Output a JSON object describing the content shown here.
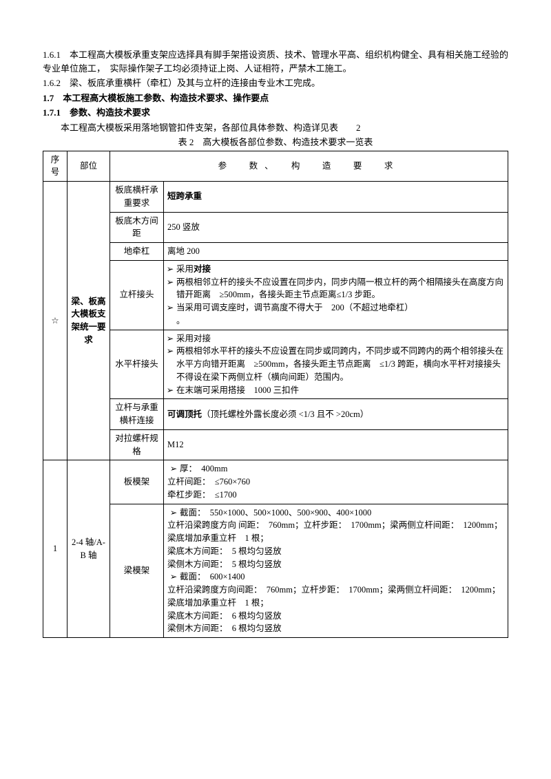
{
  "intro": {
    "p161": "1.6.1　本工程高大模板承重支架应选择具有脚手架搭设资质、技术、管理水平高、组织机构健全、具有相关施工经验的专业单位施工，　实际操作架子工均必须持证上岗、人证相符，严禁木工施工。",
    "p162": "1.6.2　梁、板底承重横杆（牵杠）及其与立杆的连接由专业木工完成。",
    "p17": "1.7　本工程高大模板施工参数、构造技术要求、操作要点",
    "p171": "1.7.1　参数、构造技术要求",
    "p171body": "本工程高大模板采用落地钢管扣件支架，各部位具体参数、构造详见表　　2",
    "caption": "表 2　高大模板各部位参数、构造技术要求一览表"
  },
  "headers": {
    "seq": "序号",
    "pos": "部位",
    "req": "参　数、　构　造　要　求"
  },
  "g0": {
    "star": "☆",
    "pos": "梁、板高大模板支架统一要求",
    "r1_lab": "板底横杆承重要求",
    "r1_val": "短跨承重",
    "r2_lab": "板底木方间距",
    "r2_val": "250 竖放",
    "r3_lab": "地牵杠",
    "r3_val": "离地 200",
    "r4_lab": "立杆接头",
    "r4_b1": "采用",
    "r4_b1b": "对接",
    "r4_b2": "两根相邻立杆的接头不应设置在同步内，同步内隔一根立杆的两个相隔接头在高度方向错开距离　≥500mm，各接头距主节点距离≤1/3 步距。",
    "r4_b3a": "当采用可调支座时，调节高度不得大于　200（不超过地牵杠）",
    "r4_b3b": "。",
    "r5_lab": "水平杆接头",
    "r5_b1": "采用对接",
    "r5_b2": "两根相邻水平杆的接头不应设置在同步或同跨内，不同步或不同跨内的两个相邻接头在水平方向错开距离　≥500mm，各接头距主节点距离　≤1/3 跨距，横向水平杆对接接头不得设在梁下两侧立杆（横向间距）范围内。",
    "r5_b3": "在末端可采用搭接　1000 三扣件",
    "r6_lab": "立杆与承重横杆连接",
    "r6_val_b": "可调顶托",
    "r6_val_r": "（顶托螺栓外露长度必须 <1/3 且不 >20cm）",
    "r7_lab": "对拉螺杆规格",
    "r7_val": "M12"
  },
  "g1": {
    "seq": "1",
    "pos": "2-4 轴/A-B 轴",
    "r1_lab": "板模架",
    "r1_b1": "厚：　400mm",
    "r1_l2": "立杆间距：　≤760×760",
    "r1_l3": "牵杠步距：　≤1700",
    "r2_lab": "梁模架",
    "r2_b1": "截面：　550×1000、500×1000、500×900、400×1000",
    "r2_l2": "立杆沿梁跨度方向 间距：　760mm；立杆步距：　1700mm；梁两侧立杆间距：　1200mm；梁底增加承重立杆　1 根；",
    "r2_l3": "梁底木方间距：　5 根均匀竖放",
    "r2_l4": "梁侧木方间距：　5 根均匀竖放",
    "r2_b2": "截面：　600×1400",
    "r2_l6": "立杆沿梁跨度方向间距：　760mm；立杆步距：　1700mm；梁两侧立杆间距：　1200mm；梁底增加承重立杆　1 根；",
    "r2_l7": "梁底木方间距：　6 根均匀竖放",
    "r2_l8": "梁侧木方间距：　6 根均匀竖放"
  },
  "bullet": "➢"
}
